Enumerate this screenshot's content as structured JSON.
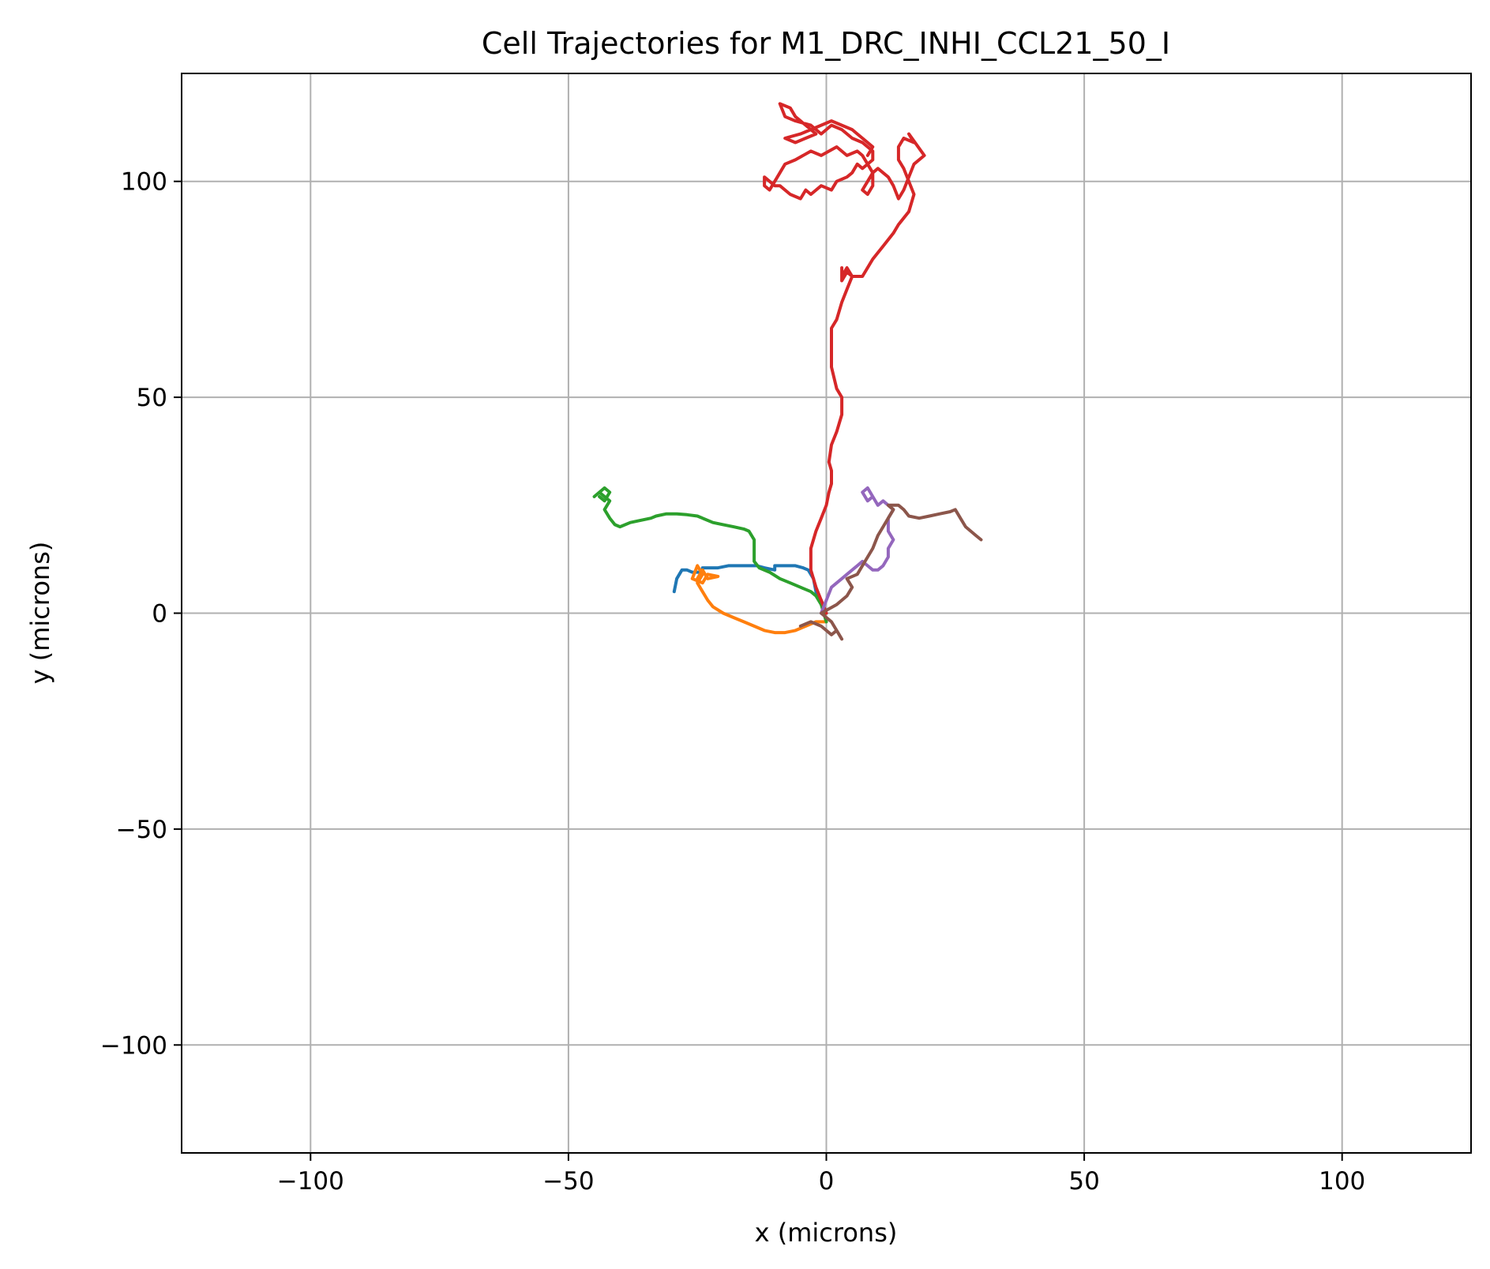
{
  "chart_data": {
    "type": "line",
    "title": "Cell Trajectories for M1_DRC_INHI_CCL21_50_I",
    "xlabel": "x (microns)",
    "ylabel": "y (microns)",
    "xlim": [
      -125,
      125
    ],
    "ylim": [
      -125,
      125
    ],
    "xticks": [
      -100,
      -50,
      0,
      50,
      100
    ],
    "yticks": [
      -100,
      -50,
      0,
      50,
      100
    ],
    "xtick_labels": [
      "−100",
      "−50",
      "0",
      "50",
      "100"
    ],
    "ytick_labels": [
      "−100",
      "−50",
      "0",
      "50",
      "100"
    ],
    "grid": true,
    "series": [
      {
        "color": "#1f77b4",
        "x": [
          0,
          -1,
          -2,
          -2.5,
          -3.5,
          -4.5,
          -6,
          -8,
          -10,
          -10,
          -12,
          -13.5,
          -14.5,
          -17,
          -19,
          -21,
          -23,
          -24,
          -24,
          -26,
          -27,
          -28,
          -29,
          -29.5
        ],
        "y": [
          0,
          3,
          5,
          8,
          10,
          10.5,
          11,
          11,
          11,
          10,
          10.5,
          11,
          11,
          11,
          11,
          10.5,
          10.5,
          10.5,
          9.5,
          9.5,
          10,
          10,
          8,
          5
        ]
      },
      {
        "color": "#ff7f0e",
        "x": [
          0,
          -2,
          -4,
          -6,
          -8,
          -10,
          -12,
          -14,
          -16,
          -18,
          -20,
          -22,
          -23,
          -24,
          -25,
          -24,
          -25,
          -26,
          -24,
          -23,
          -21,
          -23,
          -24,
          -25
        ],
        "y": [
          -2,
          -2,
          -3,
          -4,
          -4.5,
          -4.5,
          -4,
          -3,
          -2,
          -1,
          0,
          1.5,
          3,
          5,
          7,
          9,
          11,
          8,
          7,
          9,
          8.5,
          8,
          10,
          8
        ]
      },
      {
        "color": "#2ca02c",
        "x": [
          0,
          -1,
          -2,
          -3,
          -5,
          -7,
          -9,
          -11,
          -13,
          -14,
          -14,
          -14,
          -15,
          -16,
          -18,
          -20,
          -22,
          -24,
          -25,
          -27,
          -29,
          -31,
          -33,
          -34,
          -36,
          -38,
          -40,
          -41,
          -42,
          -43,
          -42,
          -43,
          -44,
          -45,
          -43,
          -42,
          -43,
          -44
        ],
        "y": [
          -2,
          2,
          4,
          5,
          6,
          7,
          8,
          9.5,
          10.5,
          12,
          14,
          17,
          19,
          19.5,
          20,
          20.5,
          21,
          22,
          22.5,
          22.8,
          23,
          23,
          22.5,
          22,
          21.5,
          21,
          20,
          20.5,
          22,
          24,
          26,
          27,
          28,
          27,
          29,
          28,
          26,
          27
        ]
      },
      {
        "color": "#d62728",
        "x": [
          0,
          -1,
          -2,
          -3,
          -3,
          -2,
          -1,
          0,
          0.5,
          1,
          1,
          0.5,
          1,
          2,
          3,
          3,
          2,
          1,
          1,
          1,
          2,
          3,
          4,
          5,
          4,
          3,
          3,
          3,
          4,
          5,
          7,
          9,
          11,
          13,
          14,
          16,
          17,
          16,
          15,
          14,
          14,
          15,
          17,
          16,
          19,
          17,
          16,
          15,
          14,
          13,
          12,
          10,
          9,
          8,
          7,
          8,
          9,
          9,
          8,
          7,
          6,
          4,
          2,
          -1,
          -3,
          -6,
          -8,
          -10,
          -11,
          -12,
          -12,
          -10,
          -9,
          -7,
          -5,
          -4,
          -3,
          -1,
          1,
          2,
          4,
          5,
          6,
          7,
          9,
          9,
          8,
          7,
          5,
          3,
          1,
          -1,
          -3,
          -6,
          -8,
          -9,
          -7,
          -6,
          -4,
          -3,
          -2,
          -4,
          -6,
          -8,
          -5,
          -3,
          -1,
          1,
          3,
          5,
          6,
          7,
          8,
          9,
          8
        ],
        "y": [
          0,
          3,
          6,
          10,
          15,
          19,
          22,
          25,
          28,
          30,
          33,
          35,
          39,
          42,
          46,
          50,
          52,
          57,
          62,
          66,
          68,
          72,
          75,
          78,
          80,
          78,
          80,
          77,
          79,
          78,
          78,
          82,
          85,
          88,
          90,
          93,
          97,
          100,
          103,
          105,
          108,
          110,
          109,
          111,
          106,
          104,
          101,
          98,
          96,
          99,
          101,
          103,
          102,
          100,
          98,
          97,
          99,
          102,
          104,
          106,
          107,
          106,
          108,
          106,
          107,
          105,
          104,
          100,
          98,
          99,
          101,
          99,
          99,
          97,
          96,
          98,
          97,
          99,
          98,
          100,
          101,
          102,
          104,
          103,
          105,
          107,
          108,
          109,
          110,
          112,
          113,
          111,
          113,
          114,
          115,
          118,
          117,
          115,
          113,
          112,
          111,
          110,
          109,
          110,
          111,
          112,
          113,
          114,
          113,
          112,
          111,
          110,
          109,
          108,
          106
        ]
      },
      {
        "color": "#9467bd",
        "x": [
          -1,
          0,
          1,
          2,
          3,
          4,
          5,
          6,
          7,
          8,
          9,
          10,
          11,
          12,
          12,
          13,
          12,
          12,
          13,
          12,
          11,
          10,
          9,
          8,
          7,
          8,
          9
        ],
        "y": [
          0,
          3,
          6,
          7,
          8,
          9,
          10,
          11,
          12,
          11,
          10,
          10,
          11,
          13,
          15,
          17,
          19,
          22,
          24,
          25,
          26,
          25,
          27,
          26,
          28,
          29,
          27
        ]
      },
      {
        "color": "#8c564b",
        "x": [
          -5,
          -3,
          -1,
          1,
          2,
          3,
          1,
          -1,
          2,
          4,
          5,
          4,
          6,
          7,
          8,
          9,
          10,
          11,
          12,
          13,
          12,
          14,
          15,
          16,
          18,
          20,
          22,
          24,
          25,
          26,
          27,
          28,
          29,
          30
        ],
        "y": [
          -3,
          -2,
          -3,
          -5,
          -4,
          -6,
          -2,
          0,
          2,
          4,
          6,
          8,
          9,
          11,
          13,
          15,
          18,
          20,
          22,
          24,
          25,
          25,
          24,
          22.5,
          22,
          22.5,
          23,
          23.5,
          24,
          22,
          20,
          19,
          18,
          17
        ]
      }
    ]
  }
}
